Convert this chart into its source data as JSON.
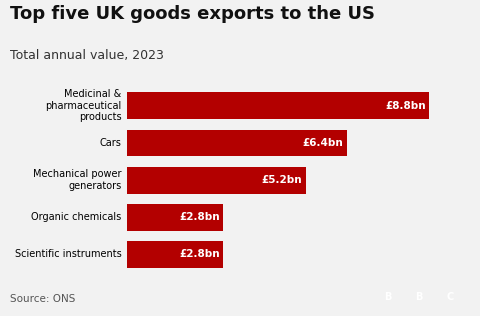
{
  "title": "Top five UK goods exports to the US",
  "subtitle": "Total annual value, 2023",
  "categories": [
    "Medicinal &\npharmaceutical\nproducts",
    "Cars",
    "Mechanical power\ngenerators",
    "Organic chemicals",
    "Scientific instruments"
  ],
  "values": [
    8.8,
    6.4,
    5.2,
    2.8,
    2.8
  ],
  "labels": [
    "£8.8bn",
    "£6.4bn",
    "£5.2bn",
    "£2.8bn",
    "£2.8bn"
  ],
  "bar_color": "#b30000",
  "label_color": "#ffffff",
  "background_color": "#f2f2f2",
  "title_fontsize": 13,
  "subtitle_fontsize": 9,
  "source_text": "Source: ONS",
  "source_fontsize": 7.5,
  "xlim": [
    0,
    10
  ],
  "bar_height": 0.72
}
